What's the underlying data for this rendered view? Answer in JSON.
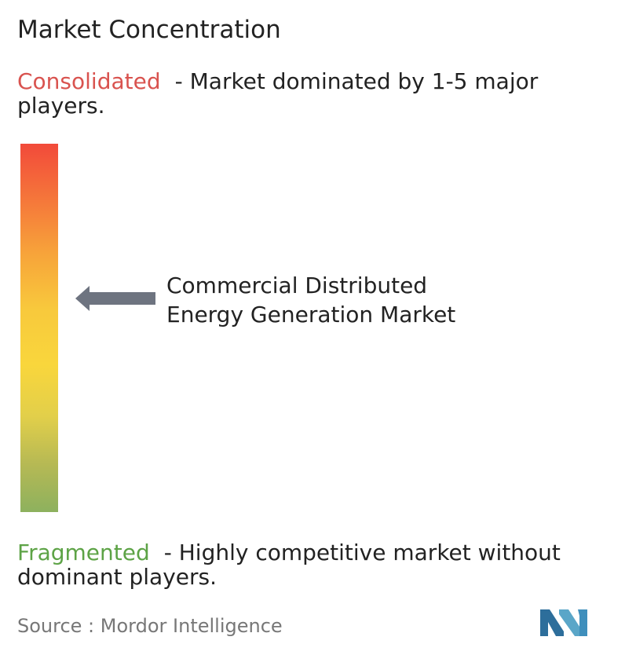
{
  "chart_data": {
    "type": "gradient-scale",
    "title": "Market Concentration",
    "scale_top": {
      "term": "Consolidated",
      "description": "- Market dominated by 1-5 major players."
    },
    "scale_bottom": {
      "term": "Fragmented",
      "description": "- Highly competitive market without dominant players."
    },
    "marker": {
      "label_line1": "Commercial Distributed",
      "label_line2": "Energy Generation Market",
      "level": 0.58
    },
    "source": "Source :  Mordor Intelligence",
    "colors": {
      "consolidated": "#d9534f",
      "fragmented": "#5da346",
      "arrow": "#6e7480",
      "logo": "#5aa6c8"
    }
  }
}
